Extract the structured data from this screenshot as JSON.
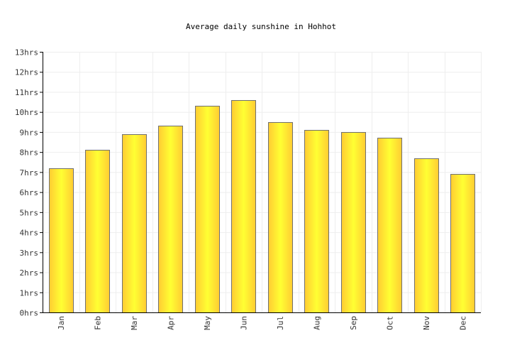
{
  "chart_data": {
    "type": "bar",
    "title": "Average daily sunshine in Hohhot",
    "xlabel": "",
    "ylabel": "",
    "categories": [
      "Jan",
      "Feb",
      "Mar",
      "Apr",
      "May",
      "Jun",
      "Jul",
      "Aug",
      "Sep",
      "Oct",
      "Nov",
      "Dec"
    ],
    "values": [
      7.2,
      8.1,
      8.9,
      9.3,
      10.3,
      10.6,
      9.5,
      9.1,
      9.0,
      8.7,
      7.7,
      6.9
    ],
    "ylim": [
      0,
      13
    ],
    "yticks": [
      "0hrs",
      "1hrs",
      "2hrs",
      "3hrs",
      "4hrs",
      "5hrs",
      "6hrs",
      "7hrs",
      "8hrs",
      "9hrs",
      "10hrs",
      "11hrs",
      "12hrs",
      "13hrs"
    ],
    "grid": true,
    "legend": "none",
    "colors": {
      "bar_light": "#ffff33",
      "bar_dark": "#ffcc33",
      "bar_stroke": "#707070",
      "grid": "#eeeeee",
      "axis": "#000000"
    }
  }
}
